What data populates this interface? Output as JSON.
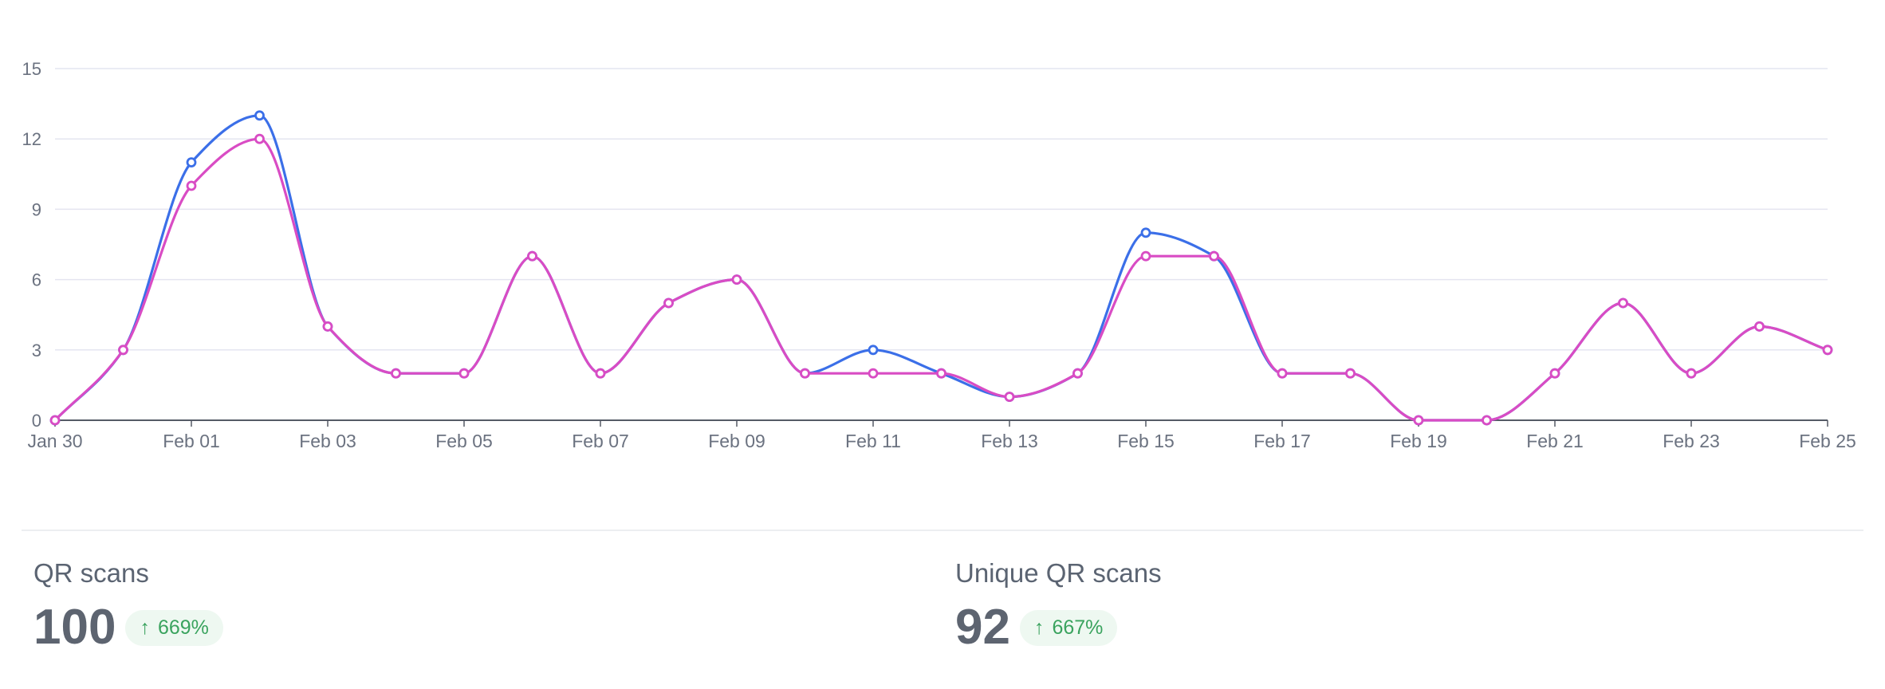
{
  "chart_data": {
    "type": "line",
    "title": "",
    "xlabel": "",
    "ylabel": "",
    "ylim": [
      0,
      15
    ],
    "yticks": [
      0,
      3,
      6,
      9,
      12,
      15
    ],
    "grid": true,
    "x": [
      "Jan 30",
      "Jan 31",
      "Feb 01",
      "Feb 02",
      "Feb 03",
      "Feb 04",
      "Feb 05",
      "Feb 06",
      "Feb 07",
      "Feb 08",
      "Feb 09",
      "Feb 10",
      "Feb 11",
      "Feb 12",
      "Feb 13",
      "Feb 14",
      "Feb 15",
      "Feb 16",
      "Feb 17",
      "Feb 18",
      "Feb 19",
      "Feb 20",
      "Feb 21",
      "Feb 22",
      "Feb 23",
      "Feb 24",
      "Feb 25"
    ],
    "xticks": [
      "Jan 30",
      "Feb 01",
      "Feb 03",
      "Feb 05",
      "Feb 07",
      "Feb 09",
      "Feb 11",
      "Feb 13",
      "Feb 15",
      "Feb 17",
      "Feb 19",
      "Feb 21",
      "Feb 23",
      "Feb 25"
    ],
    "series": [
      {
        "color": "#3b6fe8",
        "values": [
          0,
          3,
          11,
          13,
          4,
          2,
          2,
          7,
          2,
          5,
          6,
          2,
          3,
          2,
          1,
          2,
          8,
          7,
          2,
          2,
          0,
          0,
          2,
          5,
          2,
          4,
          3
        ]
      },
      {
        "color": "#d94cc4",
        "values": [
          0,
          3,
          10,
          12,
          4,
          2,
          2,
          7,
          2,
          5,
          6,
          2,
          2,
          2,
          1,
          2,
          7,
          7,
          2,
          2,
          0,
          0,
          2,
          5,
          2,
          4,
          3
        ]
      }
    ]
  },
  "stats": [
    {
      "label": "QR scans",
      "value": "100",
      "change": "669%",
      "direction": "up"
    },
    {
      "label": "Unique QR scans",
      "value": "92",
      "change": "667%",
      "direction": "up"
    }
  ],
  "colors": {
    "grid": "#e4e5f0",
    "axis": "#555b66",
    "badge_bg": "#eef8f1",
    "badge_text": "#3aa35e"
  }
}
